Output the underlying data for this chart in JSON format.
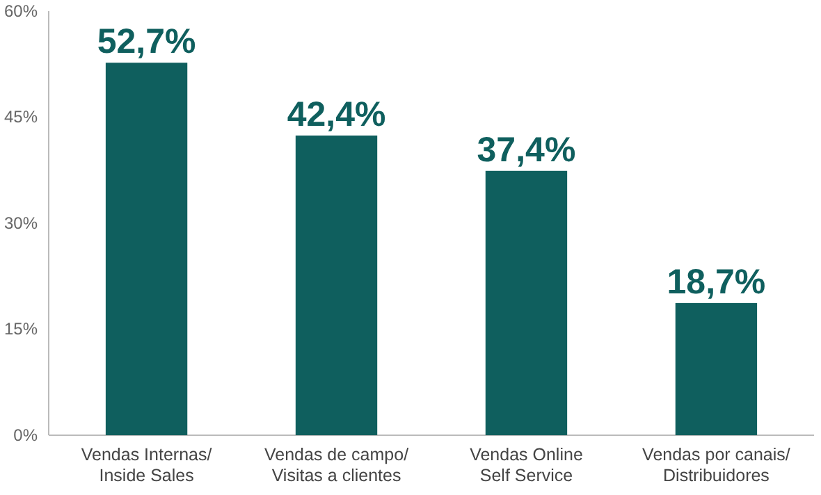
{
  "chart_data": {
    "type": "bar",
    "categories": [
      "Vendas Internas/\nInside Sales",
      "Vendas de campo/\nVisitas a clientes",
      "Vendas Online\nSelf Service",
      "Vendas por canais/\nDistribuidores"
    ],
    "values": [
      52.7,
      42.4,
      37.4,
      18.7
    ],
    "value_labels": [
      "52,7%",
      "42,4%",
      "37,4%",
      "18,7%"
    ],
    "color": "#0f5f5e",
    "ylim": [
      0,
      60
    ],
    "yticks": [
      {
        "value": 0,
        "label": "0%"
      },
      {
        "value": 15,
        "label": "15%"
      },
      {
        "value": 30,
        "label": "30%"
      },
      {
        "value": 45,
        "label": "45%"
      },
      {
        "value": 60,
        "label": "60%"
      }
    ],
    "grid": false
  }
}
